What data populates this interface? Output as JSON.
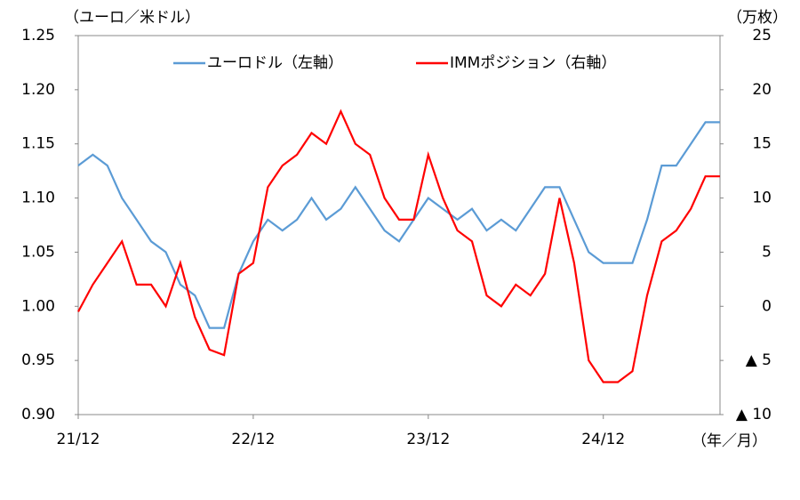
{
  "chart_data": {
    "type": "line",
    "y_label": "（ユーロ／米ドル）",
    "y2_label": "（万枚）",
    "x_label": "（年／月）",
    "categories": [
      "21/12",
      null,
      null,
      null,
      null,
      null,
      null,
      null,
      null,
      null,
      null,
      null,
      "22/12",
      null,
      null,
      null,
      null,
      null,
      null,
      null,
      null,
      null,
      null,
      null,
      "23/12",
      null,
      null,
      null,
      null,
      null,
      null,
      null,
      null,
      null,
      null,
      null,
      "24/12",
      null,
      null,
      null,
      null,
      null,
      null,
      null,
      null
    ],
    "series": [
      {
        "name": "ユーロドル（左軸）",
        "color": "#5b9bd5",
        "axis": "y",
        "values": [
          1.13,
          1.14,
          1.13,
          1.1,
          1.08,
          1.06,
          1.05,
          1.02,
          1.01,
          0.98,
          0.98,
          1.03,
          1.06,
          1.08,
          1.07,
          1.08,
          1.1,
          1.08,
          1.09,
          1.11,
          1.09,
          1.07,
          1.06,
          1.08,
          1.1,
          1.09,
          1.08,
          1.09,
          1.07,
          1.08,
          1.07,
          1.09,
          1.11,
          1.11,
          1.08,
          1.05,
          1.04,
          1.04,
          1.04,
          1.08,
          1.13,
          1.13,
          1.15,
          1.17,
          1.17
        ]
      },
      {
        "name": "IMMポジション（右軸）",
        "color": "#ff0000",
        "axis": "y2",
        "values": [
          -0.5,
          2,
          4,
          6,
          2,
          2,
          0,
          4,
          -1,
          -4,
          -4.5,
          3,
          4,
          11,
          13,
          14,
          16,
          15,
          18,
          15,
          14,
          10,
          8,
          8,
          14,
          10,
          7,
          6,
          1,
          0,
          2,
          1,
          3,
          10,
          4,
          -5,
          -7,
          -7,
          -6,
          1,
          6,
          7,
          9,
          12,
          12
        ]
      }
    ],
    "ylim": [
      0.9,
      1.25
    ],
    "yticks": [
      {
        "value": 0.9,
        "label": "0.90"
      },
      0.95,
      {
        "value": 1.0,
        "label": "1.00"
      },
      1.05,
      {
        "value": 1.1,
        "label": "1.10"
      },
      1.15,
      {
        "value": 1.2,
        "label": "1.20"
      },
      1.25
    ],
    "y2lim": [
      -10,
      25
    ],
    "y2ticks": [
      {
        "value": -10,
        "label": "▲ 10"
      },
      {
        "value": -5,
        "label": "▲ 5"
      },
      0,
      5,
      10,
      15,
      20,
      25
    ],
    "grid": false
  }
}
